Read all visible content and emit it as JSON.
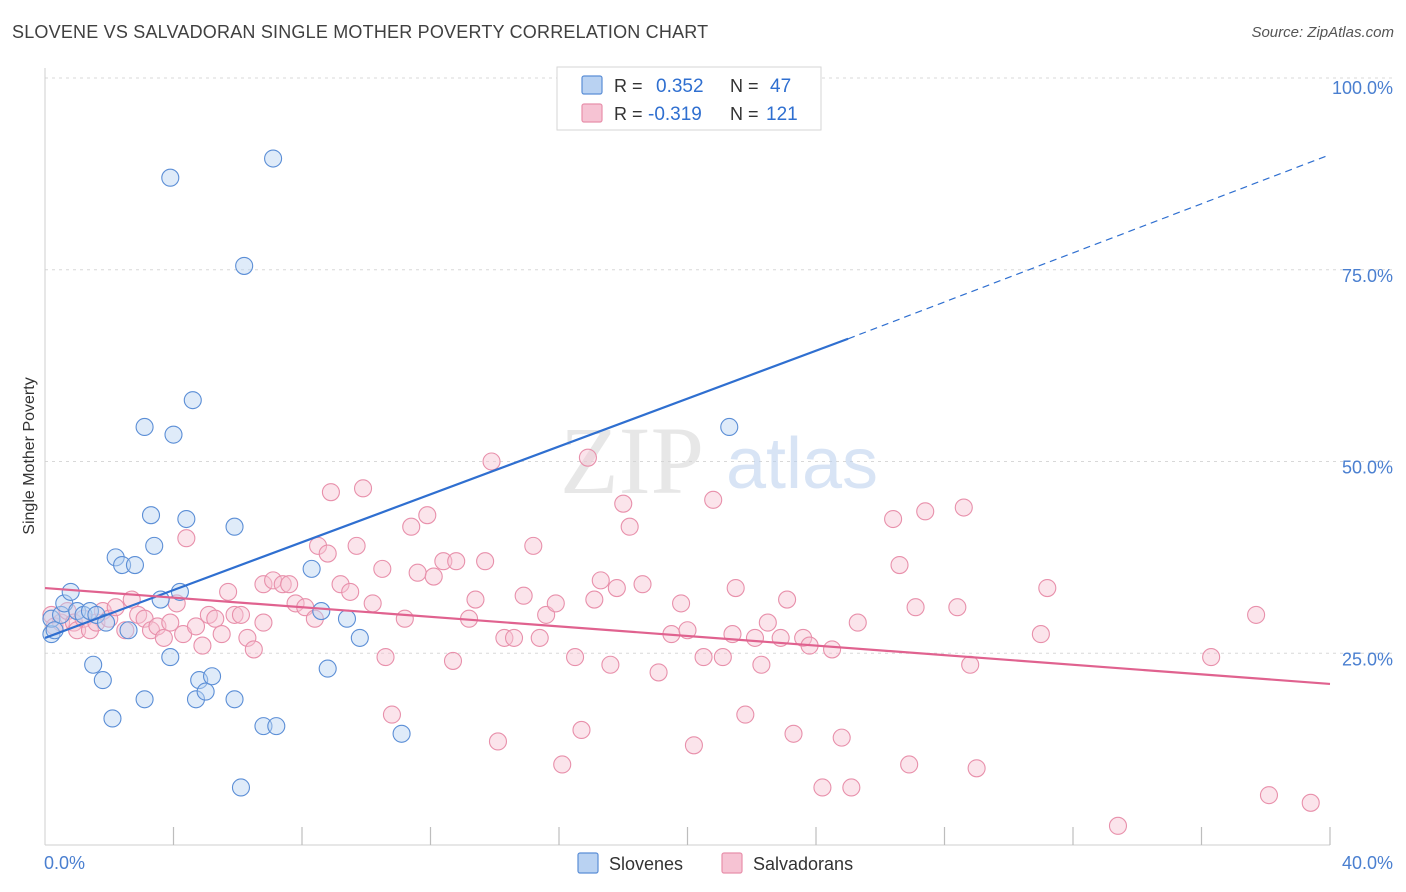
{
  "title": "SLOVENE VS SALVADORAN SINGLE MOTHER POVERTY CORRELATION CHART",
  "source": "Source: ZipAtlas.com",
  "watermark": {
    "zip": "ZIP",
    "atlas": "atlas"
  },
  "colors": {
    "blue": "#5b8ed6",
    "blue_fill": "#b9d2f2",
    "blue_line": "#2f6fd0",
    "pink": "#e890ab",
    "pink_fill": "#f6c3d3",
    "pink_line": "#e0628f",
    "tick_label": "#4a7fd0",
    "grid": "#d8d8d8"
  },
  "legend": {
    "rows": [
      {
        "r_label": "R =",
        "r_value": "0.352",
        "n_label": "N =",
        "n_value": "47"
      },
      {
        "r_label": "R =",
        "r_value": "-0.319",
        "n_label": "N =",
        "n_value": "121"
      }
    ]
  },
  "bottom_legend": [
    "Slovenes",
    "Salvadorans"
  ],
  "chart_data": {
    "type": "scatter",
    "xlabel": "",
    "ylabel": "Single Mother Poverty",
    "xlim": [
      0,
      40
    ],
    "ylim": [
      0,
      100
    ],
    "x_tick_labels": [
      "0.0%",
      "40.0%"
    ],
    "y_tick_labels": [
      "25.0%",
      "50.0%",
      "75.0%",
      "100.0%"
    ],
    "y_ticks": [
      25,
      50,
      75,
      100
    ],
    "grid": true,
    "legend_position": "top-center",
    "series": [
      {
        "name": "Slovenes",
        "r": 0.352,
        "n": 47,
        "trend": {
          "x0": 0,
          "y0": 27,
          "x1": 25,
          "y1": 66,
          "dash_to_x": 40,
          "dash_to_y": 90
        },
        "points": [
          [
            0.2,
            27.5
          ],
          [
            0.2,
            29.5
          ],
          [
            0.3,
            28
          ],
          [
            0.5,
            30
          ],
          [
            0.6,
            31.5
          ],
          [
            0.8,
            33
          ],
          [
            1.0,
            30.5
          ],
          [
            1.2,
            30
          ],
          [
            1.4,
            30.5
          ],
          [
            1.6,
            30
          ],
          [
            1.9,
            29
          ],
          [
            1.5,
            23.5
          ],
          [
            1.8,
            21.5
          ],
          [
            2.1,
            16.5
          ],
          [
            2.2,
            37.5
          ],
          [
            2.4,
            36.5
          ],
          [
            2.8,
            36.5
          ],
          [
            2.6,
            28
          ],
          [
            3.1,
            19
          ],
          [
            3.1,
            54.5
          ],
          [
            3.3,
            43
          ],
          [
            3.4,
            39
          ],
          [
            3.6,
            32
          ],
          [
            3.9,
            87
          ],
          [
            3.9,
            24.5
          ],
          [
            4.0,
            53.5
          ],
          [
            4.2,
            33
          ],
          [
            4.4,
            42.5
          ],
          [
            4.6,
            58
          ],
          [
            4.7,
            19
          ],
          [
            4.8,
            21.5
          ],
          [
            5.0,
            20
          ],
          [
            5.2,
            22
          ],
          [
            5.9,
            41.5
          ],
          [
            5.9,
            19
          ],
          [
            6.1,
            7.5
          ],
          [
            6.2,
            75.5
          ],
          [
            6.8,
            15.5
          ],
          [
            7.1,
            89.5
          ],
          [
            7.2,
            15.5
          ],
          [
            8.3,
            36
          ],
          [
            8.6,
            30.5
          ],
          [
            8.8,
            23
          ],
          [
            9.4,
            29.5
          ],
          [
            9.8,
            27
          ],
          [
            11.1,
            14.5
          ],
          [
            21.3,
            54.5
          ]
        ]
      },
      {
        "name": "Salvadorans",
        "r": -0.319,
        "n": 121,
        "trend": {
          "x0": 0,
          "y0": 33.5,
          "x1": 40,
          "y1": 21
        },
        "points": [
          [
            0.2,
            30
          ],
          [
            0.3,
            28.5
          ],
          [
            0.5,
            29
          ],
          [
            0.7,
            30.5
          ],
          [
            0.9,
            29
          ],
          [
            1.0,
            28
          ],
          [
            1.2,
            29.5
          ],
          [
            1.4,
            28
          ],
          [
            1.6,
            29
          ],
          [
            1.8,
            30.5
          ],
          [
            2.0,
            29.5
          ],
          [
            2.2,
            31
          ],
          [
            2.5,
            28
          ],
          [
            2.7,
            32
          ],
          [
            2.9,
            30
          ],
          [
            3.1,
            29.5
          ],
          [
            3.3,
            28
          ],
          [
            3.5,
            28.5
          ],
          [
            3.7,
            27
          ],
          [
            3.9,
            29
          ],
          [
            4.1,
            31.5
          ],
          [
            4.3,
            27.5
          ],
          [
            4.4,
            40
          ],
          [
            4.7,
            28.5
          ],
          [
            4.9,
            26
          ],
          [
            5.1,
            30
          ],
          [
            5.3,
            29.5
          ],
          [
            5.5,
            27.5
          ],
          [
            5.7,
            33
          ],
          [
            5.9,
            30
          ],
          [
            6.1,
            30
          ],
          [
            6.3,
            27
          ],
          [
            6.5,
            25.5
          ],
          [
            6.8,
            29
          ],
          [
            6.8,
            34
          ],
          [
            7.1,
            34.5
          ],
          [
            7.4,
            34
          ],
          [
            7.6,
            34
          ],
          [
            7.8,
            31.5
          ],
          [
            8.1,
            31
          ],
          [
            8.4,
            29.5
          ],
          [
            8.5,
            39
          ],
          [
            8.8,
            38
          ],
          [
            8.9,
            46
          ],
          [
            9.2,
            34
          ],
          [
            9.5,
            33
          ],
          [
            9.7,
            39
          ],
          [
            9.9,
            46.5
          ],
          [
            10.2,
            31.5
          ],
          [
            10.5,
            36
          ],
          [
            10.6,
            24.5
          ],
          [
            10.8,
            17
          ],
          [
            11.2,
            29.5
          ],
          [
            11.4,
            41.5
          ],
          [
            11.6,
            35.5
          ],
          [
            11.9,
            43
          ],
          [
            12.1,
            35
          ],
          [
            12.4,
            37
          ],
          [
            12.7,
            24
          ],
          [
            12.8,
            37
          ],
          [
            13.2,
            29.5
          ],
          [
            13.4,
            32
          ],
          [
            13.7,
            37
          ],
          [
            13.9,
            50
          ],
          [
            14.1,
            13.5
          ],
          [
            14.3,
            27
          ],
          [
            14.6,
            27
          ],
          [
            14.9,
            32.5
          ],
          [
            15.2,
            39
          ],
          [
            15.4,
            27
          ],
          [
            15.6,
            30
          ],
          [
            15.9,
            31.5
          ],
          [
            16.1,
            10.5
          ],
          [
            16.5,
            24.5
          ],
          [
            16.7,
            15
          ],
          [
            16.9,
            50.5
          ],
          [
            17.1,
            32
          ],
          [
            17.3,
            34.5
          ],
          [
            17.6,
            23.5
          ],
          [
            17.8,
            33.5
          ],
          [
            18.0,
            44.5
          ],
          [
            18.2,
            41.5
          ],
          [
            18.6,
            34
          ],
          [
            19.1,
            22.5
          ],
          [
            19.5,
            27.5
          ],
          [
            19.8,
            31.5
          ],
          [
            20.0,
            28
          ],
          [
            20.2,
            13
          ],
          [
            20.5,
            24.5
          ],
          [
            20.8,
            45
          ],
          [
            21.1,
            24.5
          ],
          [
            21.4,
            27.5
          ],
          [
            21.5,
            33.5
          ],
          [
            21.8,
            17
          ],
          [
            22.1,
            27
          ],
          [
            22.3,
            23.5
          ],
          [
            22.5,
            29
          ],
          [
            22.9,
            27
          ],
          [
            23.1,
            32
          ],
          [
            23.3,
            14.5
          ],
          [
            23.6,
            27
          ],
          [
            23.8,
            26
          ],
          [
            24.2,
            7.5
          ],
          [
            24.5,
            25.5
          ],
          [
            24.8,
            14
          ],
          [
            25.1,
            7.5
          ],
          [
            25.3,
            29
          ],
          [
            26.4,
            42.5
          ],
          [
            26.6,
            36.5
          ],
          [
            26.9,
            10.5
          ],
          [
            27.1,
            31
          ],
          [
            27.4,
            43.5
          ],
          [
            28.4,
            31
          ],
          [
            28.6,
            44
          ],
          [
            28.8,
            23.5
          ],
          [
            29.0,
            10
          ],
          [
            31.0,
            27.5
          ],
          [
            31.2,
            33.5
          ],
          [
            33.4,
            2.5
          ],
          [
            36.3,
            24.5
          ],
          [
            37.7,
            30
          ],
          [
            38.1,
            6.5
          ],
          [
            39.4,
            5.5
          ]
        ]
      }
    ]
  }
}
